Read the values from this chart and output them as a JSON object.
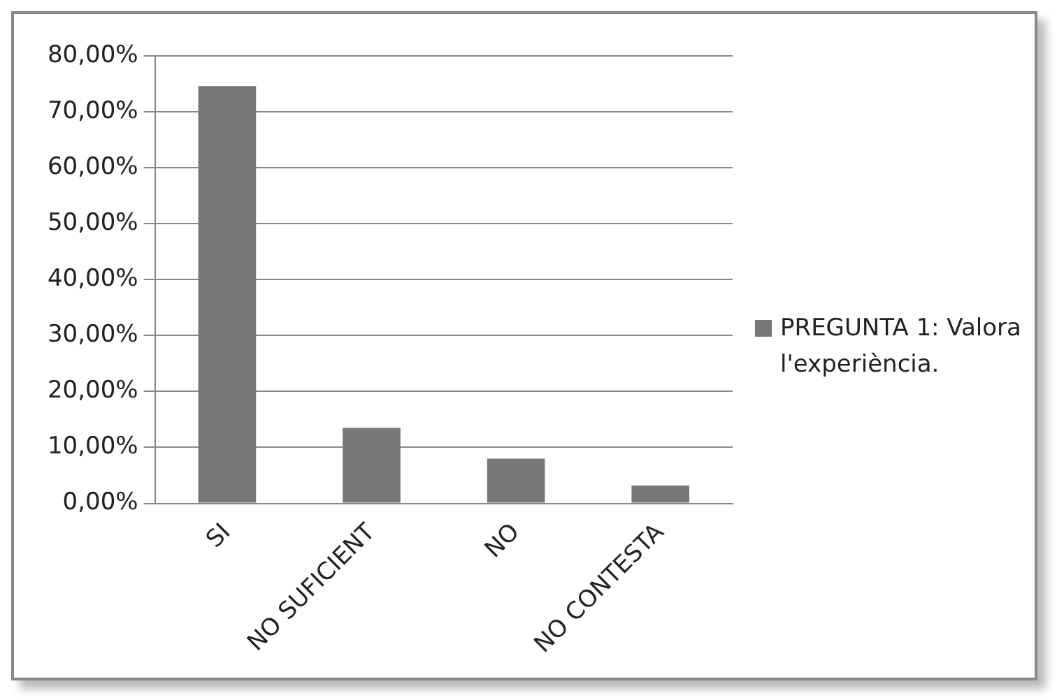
{
  "chart_data": {
    "type": "bar",
    "categories": [
      "SI",
      "NO SUFICIENT",
      "NO",
      "NO CONTESTA"
    ],
    "series": [
      {
        "name": "PREGUNTA 1: Valora l'experiència.",
        "color": "#777777",
        "values": [
          74.6,
          13.5,
          8.0,
          3.2
        ]
      }
    ],
    "ylim": [
      0,
      80
    ],
    "yticks": [
      {
        "value": 0,
        "label": "0,00%"
      },
      {
        "value": 10,
        "label": "10,00%"
      },
      {
        "value": 20,
        "label": "20,00%"
      },
      {
        "value": 30,
        "label": "30,00%"
      },
      {
        "value": 40,
        "label": "40,00%"
      },
      {
        "value": 50,
        "label": "50,00%"
      },
      {
        "value": 60,
        "label": "60,00%"
      },
      {
        "value": 70,
        "label": "70,00%"
      },
      {
        "value": 80,
        "label": "80,00%"
      }
    ],
    "grid": "y",
    "legend": "right"
  }
}
